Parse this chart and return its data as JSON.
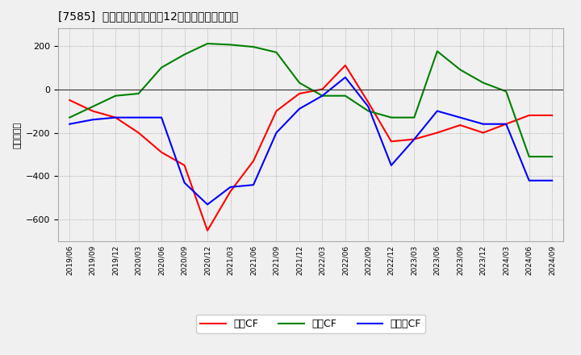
{
  "title": "[7585]  キャッシュフローの12か月移動合計の推移",
  "ylabel": "（百万円）",
  "x_labels": [
    "2019/06",
    "2019/09",
    "2019/12",
    "2020/03",
    "2020/06",
    "2020/09",
    "2020/12",
    "2021/03",
    "2021/06",
    "2021/09",
    "2021/12",
    "2022/03",
    "2022/06",
    "2022/09",
    "2022/12",
    "2023/03",
    "2023/06",
    "2023/09",
    "2023/12",
    "2024/03",
    "2024/06",
    "2024/09"
  ],
  "operating_cf": [
    -50,
    -100,
    -130,
    -200,
    -290,
    -350,
    -650,
    -470,
    -330,
    -100,
    -20,
    0,
    110,
    -60,
    -240,
    -230,
    -200,
    -165,
    -200,
    -160,
    -120,
    -120
  ],
  "investing_cf": [
    -130,
    -80,
    -30,
    -20,
    100,
    160,
    210,
    205,
    195,
    170,
    30,
    -30,
    -30,
    -100,
    -130,
    -130,
    175,
    90,
    30,
    -10,
    -310,
    -310
  ],
  "free_cf": [
    -160,
    -140,
    -130,
    -130,
    -130,
    -430,
    -530,
    -450,
    -440,
    -200,
    -90,
    -30,
    55,
    -80,
    -350,
    -230,
    -100,
    -130,
    -160,
    -160,
    -420,
    -420
  ],
  "colors": {
    "operating": "#ff0000",
    "investing": "#008000",
    "free": "#0000ff"
  },
  "ylim": [
    -700,
    280
  ],
  "yticks": [
    -600,
    -400,
    -200,
    0,
    200
  ],
  "bg_color": "#f0f0f0",
  "fig_bg_color": "#f0f0f0",
  "grid_color": "#999999",
  "legend_labels": [
    "営業CF",
    "投資CF",
    "フリーCF"
  ]
}
